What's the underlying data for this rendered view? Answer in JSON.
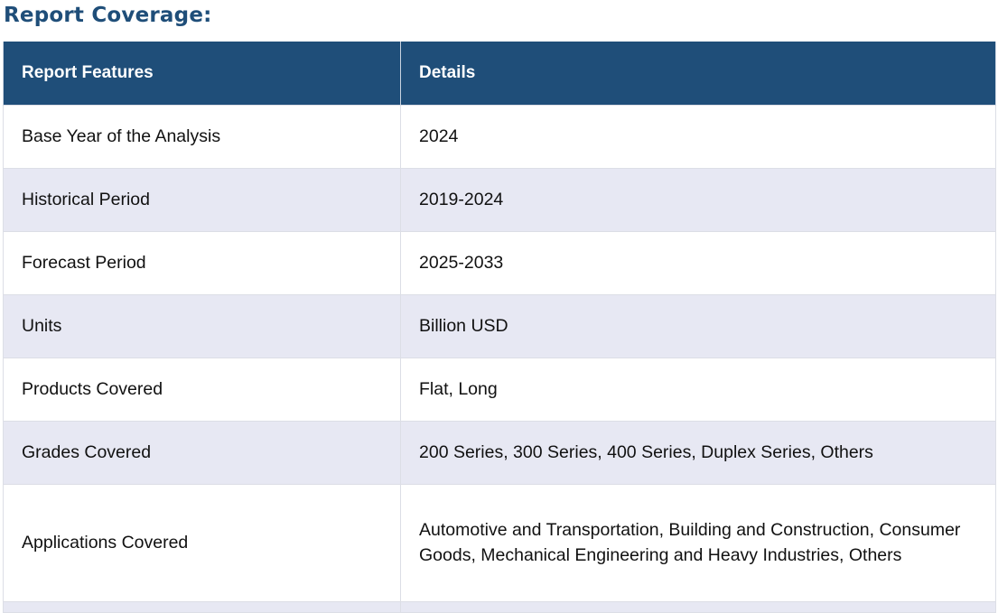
{
  "title": "Report Coverage:",
  "table": {
    "headers": [
      "Report Features",
      "Details"
    ],
    "rows": [
      [
        "Base Year of the Analysis",
        "2024"
      ],
      [
        "Historical Period",
        "2019-2024"
      ],
      [
        "Forecast Period",
        "2025-2033"
      ],
      [
        "Units",
        "Billion USD"
      ],
      [
        "Products Covered",
        "Flat, Long"
      ],
      [
        "Grades Covered",
        "200 Series, 300 Series, 400 Series, Duplex Series, Others"
      ],
      [
        "Applications Covered",
        "Automotive and Transportation, Building and Construction, Consumer Goods, Mechanical Engineering and Heavy Industries, Others"
      ]
    ]
  },
  "colors": {
    "header_background": "#1f4e79",
    "title_text": "#1f4e79",
    "alternate_row": "#e7e8f3"
  }
}
